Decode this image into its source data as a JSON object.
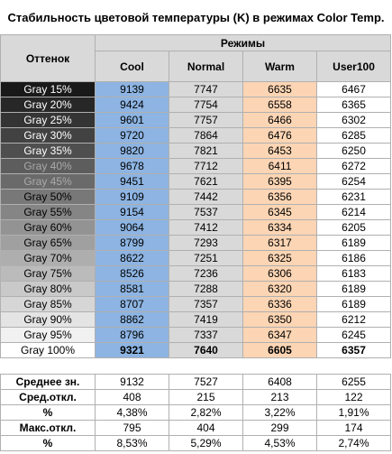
{
  "title": "Стабильность цветовой температуры (K) в режимах Color Temp.",
  "header": {
    "hue": "Оттенок",
    "modes": "Режимы",
    "columns": [
      "Cool",
      "Normal",
      "Warm",
      "User100"
    ]
  },
  "rows": [
    {
      "label": "Gray 15%",
      "values": [
        9139,
        7747,
        6635,
        6467
      ]
    },
    {
      "label": "Gray 20%",
      "values": [
        9424,
        7754,
        6558,
        6365
      ]
    },
    {
      "label": "Gray 25%",
      "values": [
        9601,
        7757,
        6466,
        6302
      ]
    },
    {
      "label": "Gray 30%",
      "values": [
        9720,
        7864,
        6476,
        6285
      ]
    },
    {
      "label": "Gray 35%",
      "values": [
        9820,
        7821,
        6453,
        6250
      ]
    },
    {
      "label": "Gray 40%",
      "values": [
        9678,
        7712,
        6411,
        6272
      ]
    },
    {
      "label": "Gray 45%",
      "values": [
        9451,
        7621,
        6395,
        6254
      ]
    },
    {
      "label": "Gray 50%",
      "values": [
        9109,
        7442,
        6356,
        6231
      ]
    },
    {
      "label": "Gray 55%",
      "values": [
        9154,
        7537,
        6345,
        6214
      ]
    },
    {
      "label": "Gray 60%",
      "values": [
        9064,
        7412,
        6334,
        6205
      ]
    },
    {
      "label": "Gray 65%",
      "values": [
        8799,
        7293,
        6317,
        6189
      ]
    },
    {
      "label": "Gray 70%",
      "values": [
        8622,
        7251,
        6325,
        6186
      ]
    },
    {
      "label": "Gray 75%",
      "values": [
        8526,
        7236,
        6306,
        6183
      ]
    },
    {
      "label": "Gray 80%",
      "values": [
        8581,
        7288,
        6320,
        6189
      ]
    },
    {
      "label": "Gray 85%",
      "values": [
        8707,
        7357,
        6336,
        6189
      ]
    },
    {
      "label": "Gray 90%",
      "values": [
        8862,
        7419,
        6350,
        6212
      ]
    },
    {
      "label": "Gray 95%",
      "values": [
        8796,
        7337,
        6347,
        6245
      ]
    },
    {
      "label": "Gray 100%",
      "values": [
        9321,
        7640,
        6605,
        6357
      ]
    }
  ],
  "summary": [
    {
      "label": "Среднее зн.",
      "values": [
        9132,
        7527,
        6408,
        6255
      ]
    },
    {
      "label": "Сред.откл.",
      "values": [
        408,
        215,
        213,
        122
      ]
    },
    {
      "label": "%",
      "values": [
        "4,38%",
        "2,82%",
        "3,22%",
        "1,91%"
      ]
    },
    {
      "label": "Макс.откл.",
      "values": [
        795,
        404,
        299,
        174
      ]
    },
    {
      "label": "%",
      "values": [
        "8,53%",
        "5,29%",
        "4,53%",
        "2,74%"
      ]
    }
  ]
}
